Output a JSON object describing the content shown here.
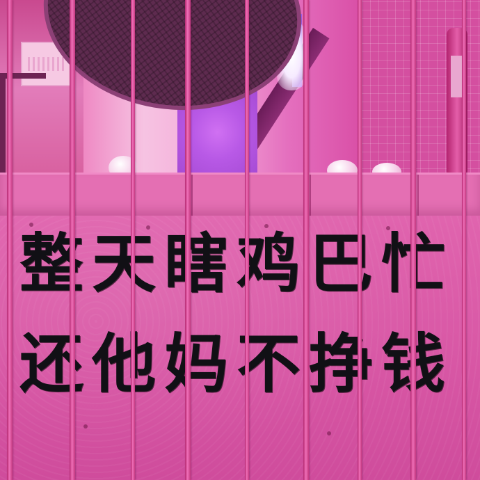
{
  "photo": {
    "slogan_lines": [
      "整天瞎鸡巴忙",
      "还他妈不挣钱"
    ]
  }
}
